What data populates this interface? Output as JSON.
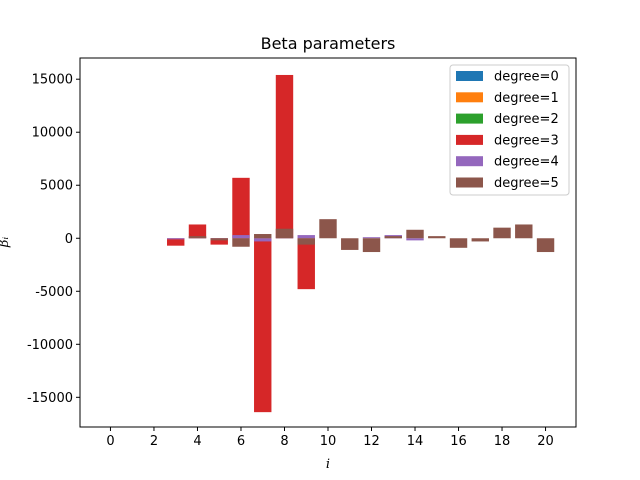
{
  "chart_data": {
    "type": "bar",
    "title": "Beta parameters",
    "xlabel": "i",
    "ylabel": "βᵢ",
    "xlim": [
      -1.4,
      21.4
    ],
    "ylim": [
      -17800,
      17000
    ],
    "xticks": [
      0,
      2,
      4,
      6,
      8,
      10,
      12,
      14,
      16,
      18,
      20
    ],
    "yticks": [
      -15000,
      -10000,
      -5000,
      0,
      5000,
      10000,
      15000
    ],
    "grid": false,
    "legend_position": "top-right",
    "bar_width": 0.8,
    "series": [
      {
        "name": "degree=0",
        "color": "#1f77b4",
        "x": [
          0
        ],
        "values": [
          0
        ]
      },
      {
        "name": "degree=1",
        "color": "#ff7f0e",
        "x": [
          0,
          1
        ],
        "values": [
          0,
          0
        ]
      },
      {
        "name": "degree=2",
        "color": "#2ca02c",
        "x": [
          0,
          1,
          2
        ],
        "values": [
          0,
          0,
          0
        ]
      },
      {
        "name": "degree=3",
        "color": "#d62728",
        "x": [
          0,
          1,
          2,
          3,
          4,
          5,
          6,
          7,
          8,
          9
        ],
        "values": [
          0,
          0,
          0,
          -700,
          1300,
          -600,
          5700,
          -16400,
          15400,
          -4800
        ]
      },
      {
        "name": "degree=4",
        "color": "#9467bd",
        "x": [
          0,
          1,
          2,
          3,
          4,
          5,
          6,
          7,
          8,
          9,
          10,
          11,
          12,
          13,
          14
        ],
        "values": [
          0,
          0,
          0,
          -100,
          100,
          -100,
          300,
          -300,
          200,
          300,
          0,
          0,
          100,
          300,
          -200
        ]
      },
      {
        "name": "degree=5",
        "color": "#8c564b",
        "x": [
          0,
          1,
          2,
          3,
          4,
          5,
          6,
          7,
          8,
          9,
          10,
          11,
          12,
          13,
          14,
          15,
          16,
          17,
          18,
          19,
          20
        ],
        "values": [
          0,
          0,
          0,
          0,
          200,
          -200,
          -800,
          400,
          900,
          -600,
          1800,
          -1100,
          -1300,
          200,
          800,
          200,
          -900,
          -300,
          1000,
          1300,
          -1300
        ]
      }
    ]
  }
}
